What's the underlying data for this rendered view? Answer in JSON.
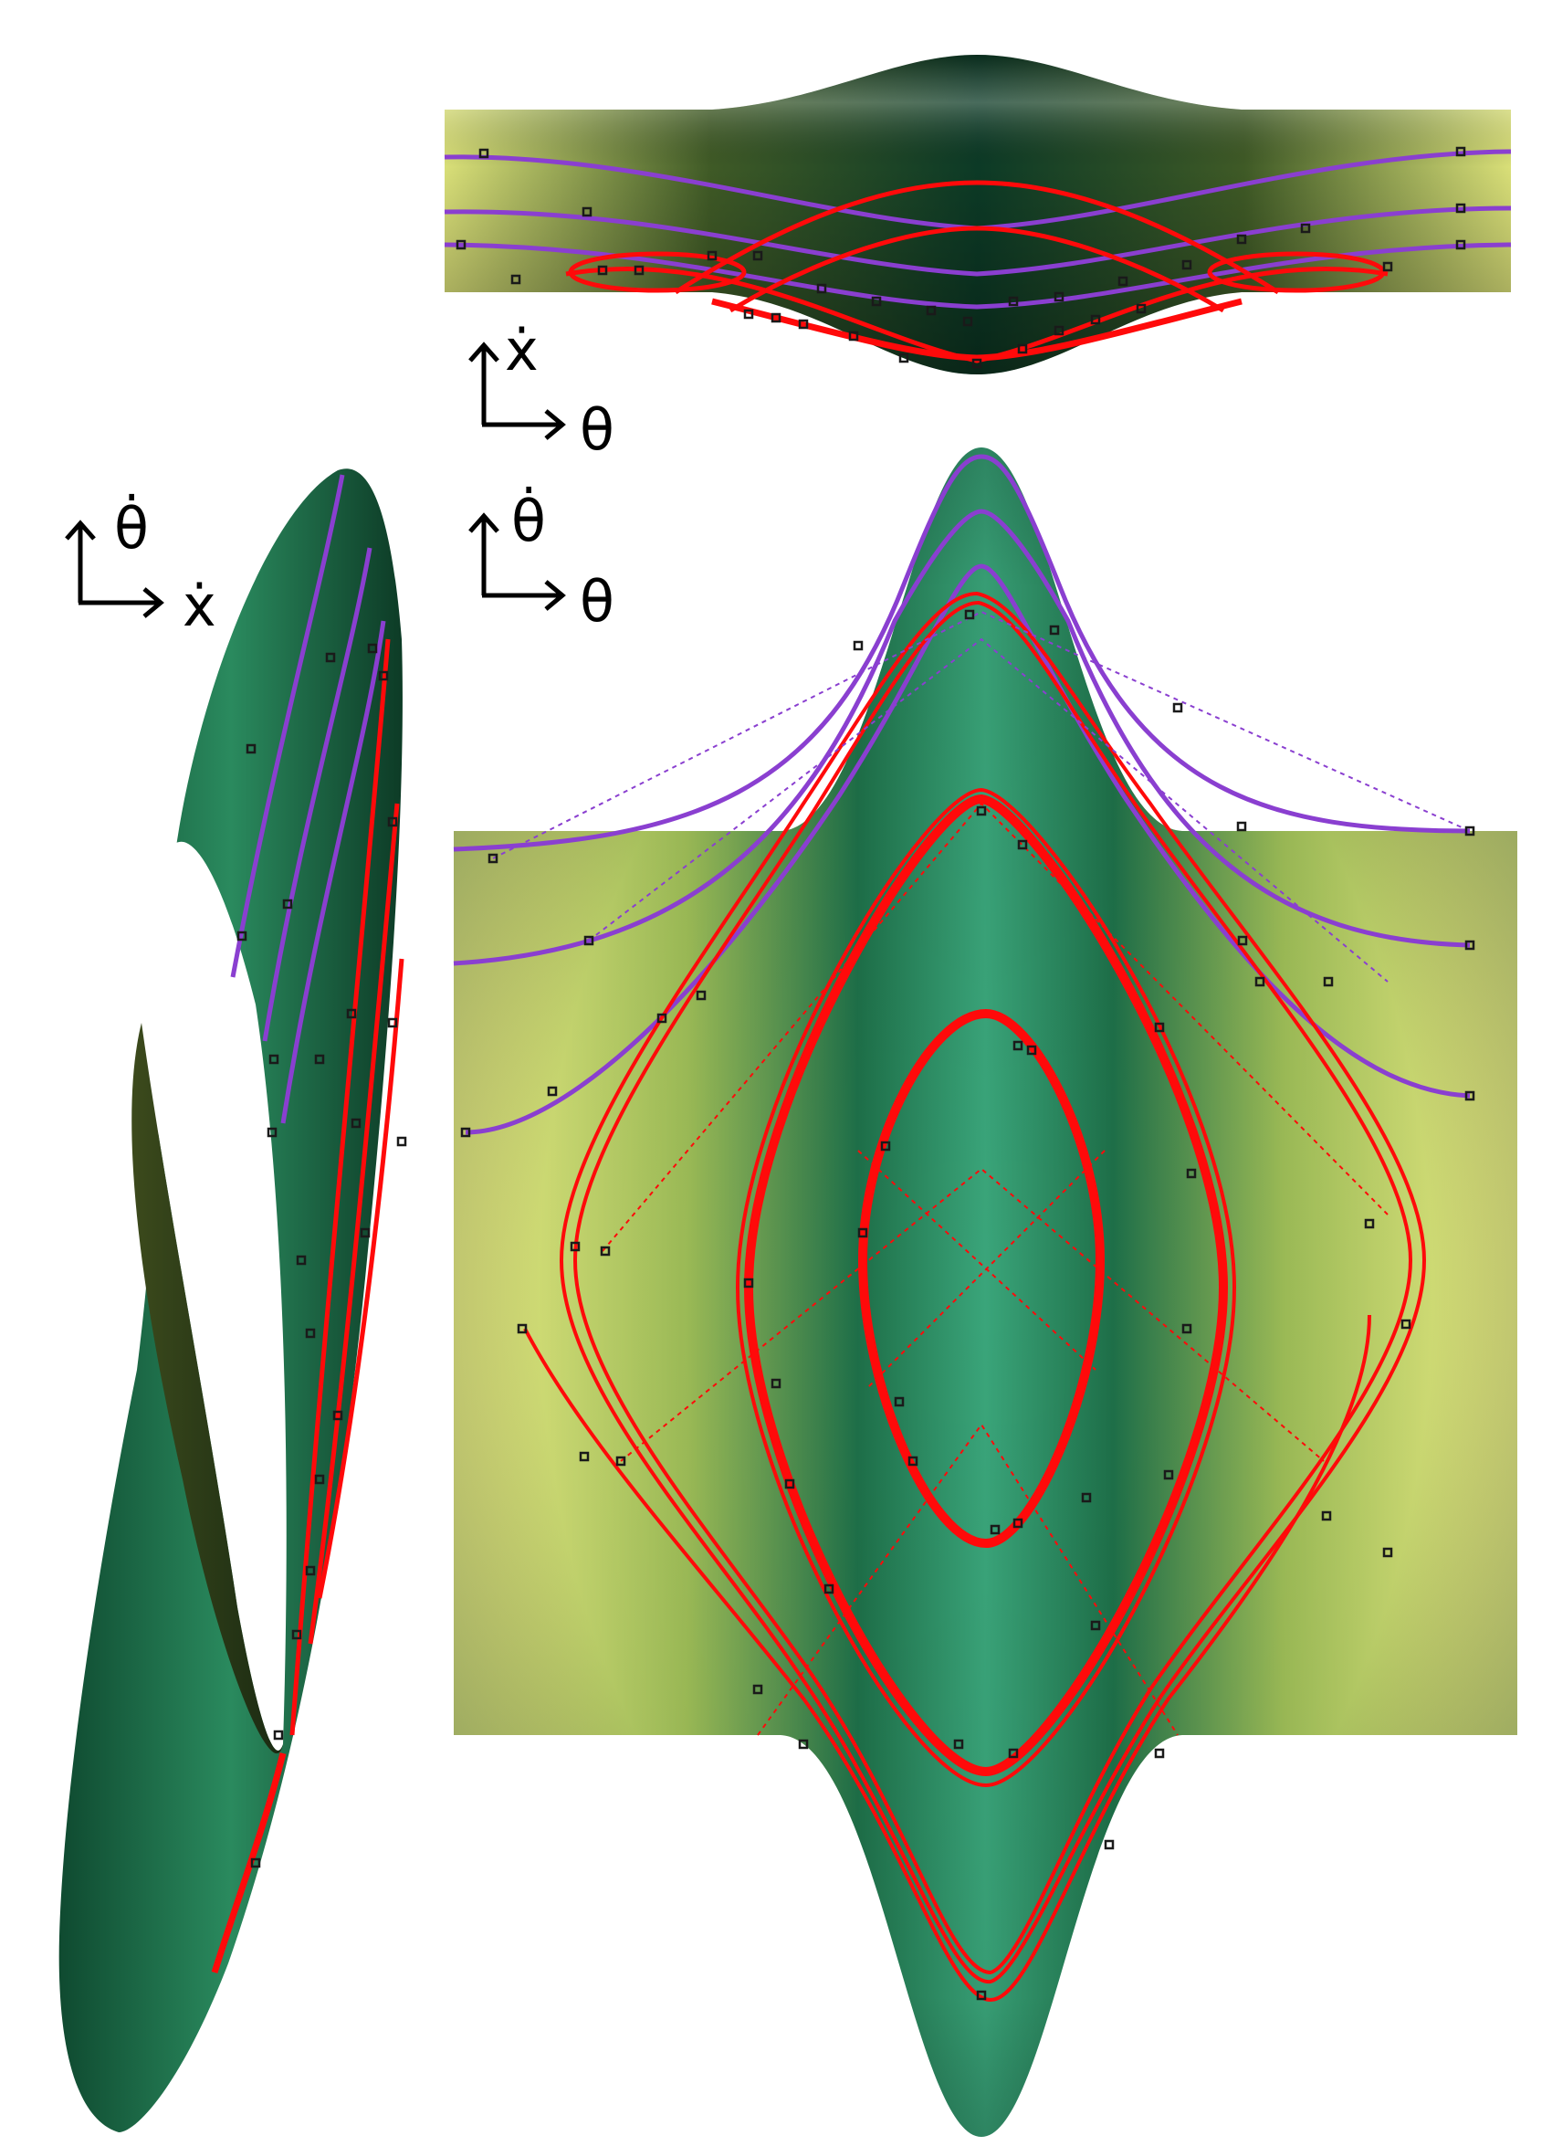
{
  "figure": {
    "panels": [
      {
        "id": "top-view",
        "axes": {
          "horizontal": "θ",
          "vertical": "ẋ"
        }
      },
      {
        "id": "left-view",
        "axes": {
          "horizontal": "ẋ",
          "vertical": "θ̇"
        }
      },
      {
        "id": "main-view",
        "axes": {
          "horizontal": "θ",
          "vertical": "θ̇"
        }
      }
    ],
    "colors": {
      "surface_dark": "#0d3d28",
      "surface_mid": "#1f7a50",
      "surface_light": "#f7f98e",
      "trajectory_escape": "#8a3fd0",
      "trajectory_bounded": "#ff0a0a",
      "marker": "#1a1a1a"
    }
  }
}
